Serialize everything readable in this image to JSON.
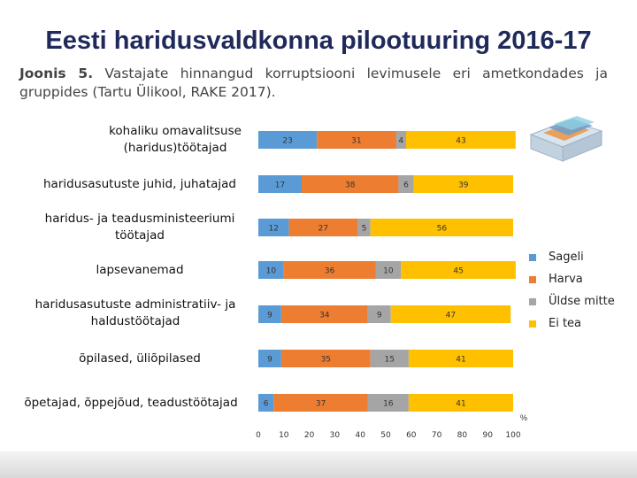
{
  "title": "Eesti haridusvaldkonna pilootuuring 2016-17",
  "caption": {
    "figure_label": "Joonis 5.",
    "text": " Vastajate hinnangud korruptsiooni levimusele eri ametkondades ja gruppides (Tartu Ülikool, RAKE 2017)."
  },
  "chart_data": {
    "type": "bar",
    "orientation": "horizontal",
    "stacked": true,
    "categories": [
      "kohaliku omavalitsuse (haridus)töötajad",
      "haridusasutuste juhid, juhatajad",
      "haridus- ja teadusministeeriumi töötajad",
      "lapsevanemad",
      "haridusasutuste administratiiv- ja haldustöötajad",
      "õpilased, üliõpilased",
      "õpetajad, õppejõud, teadustöötajad"
    ],
    "series": [
      {
        "name": "Sageli",
        "color": "#5b9bd5",
        "values": [
          23,
          17,
          12,
          10,
          9,
          9,
          6
        ]
      },
      {
        "name": "Harva",
        "color": "#ed7d31",
        "values": [
          31,
          38,
          27,
          36,
          34,
          35,
          37
        ]
      },
      {
        "name": "Üldse mitte",
        "color": "#a5a5a5",
        "values": [
          4,
          6,
          5,
          10,
          9,
          15,
          16
        ]
      },
      {
        "name": "Ei tea",
        "color": "#ffc000",
        "values": [
          43,
          39,
          56,
          45,
          47,
          41,
          41
        ]
      }
    ],
    "xlim": [
      0,
      100
    ],
    "xticks": [
      "0",
      "10",
      "20",
      "30",
      "40",
      "50",
      "60",
      "70",
      "80",
      "90",
      "100"
    ],
    "xunit": "%",
    "legend_position": "right"
  }
}
